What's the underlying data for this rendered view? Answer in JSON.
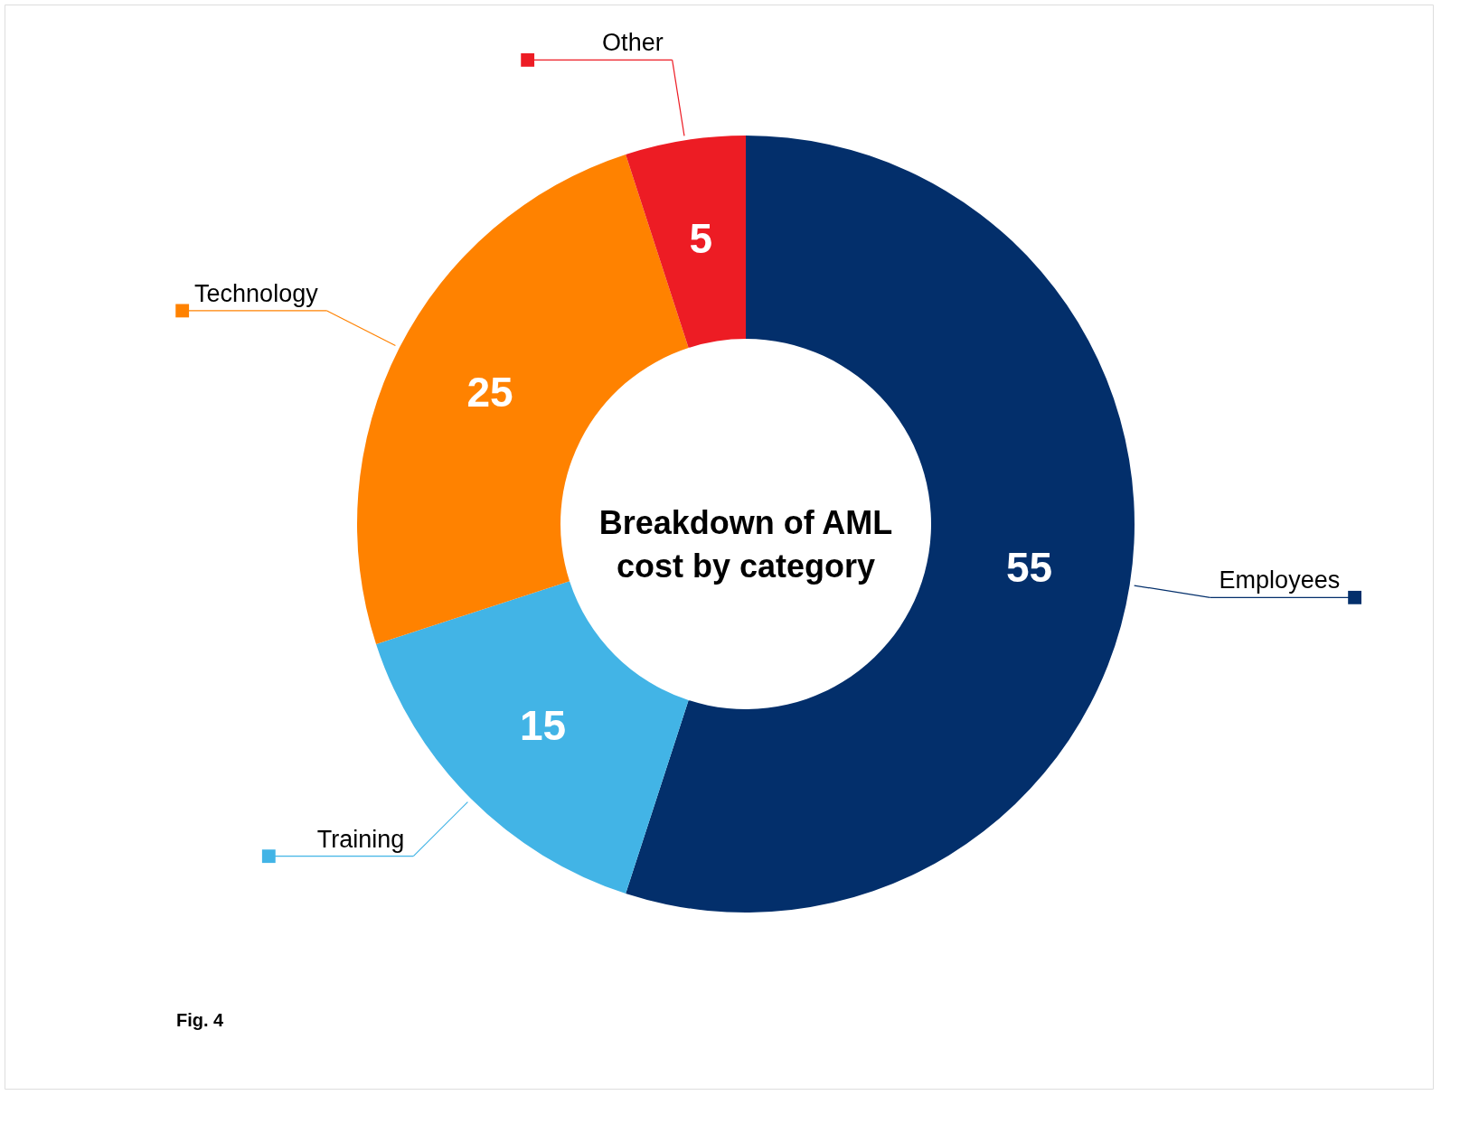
{
  "chart_data": {
    "type": "donut",
    "title": "Breakdown of AML\ncost by category",
    "categories": [
      "Employees",
      "Training",
      "Technology",
      "Other"
    ],
    "values": [
      55,
      15,
      25,
      5
    ],
    "colors": [
      "#032f6b",
      "#42b4e6",
      "#ff8200",
      "#ed1c24"
    ],
    "data_labels": true,
    "annotations": [
      "Fig. 4"
    ]
  }
}
